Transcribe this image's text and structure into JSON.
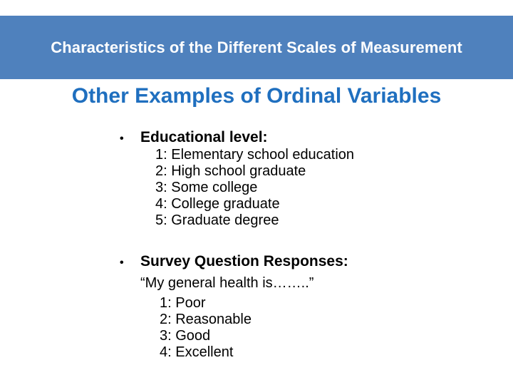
{
  "header": {
    "banner_title": "Characteristics of the Different Scales of Measurement"
  },
  "slide": {
    "title": "Other Examples of Ordinal Variables",
    "bullet_glyph": "•",
    "sections": [
      {
        "heading": "Educational level:",
        "items": [
          "1: Elementary school education",
          "2: High school graduate",
          "3: Some college",
          "4: College graduate",
          "5: Graduate degree"
        ]
      },
      {
        "heading": "Survey Question Responses:",
        "quote": "“My general health is……..”",
        "items": [
          "1: Poor",
          "2: Reasonable",
          "3: Good",
          "4: Excellent"
        ]
      }
    ]
  },
  "colors": {
    "banner_bg": "#4f81bd",
    "banner_text": "#ffffff",
    "title_text": "#1f6fbf",
    "body_text": "#000000"
  }
}
